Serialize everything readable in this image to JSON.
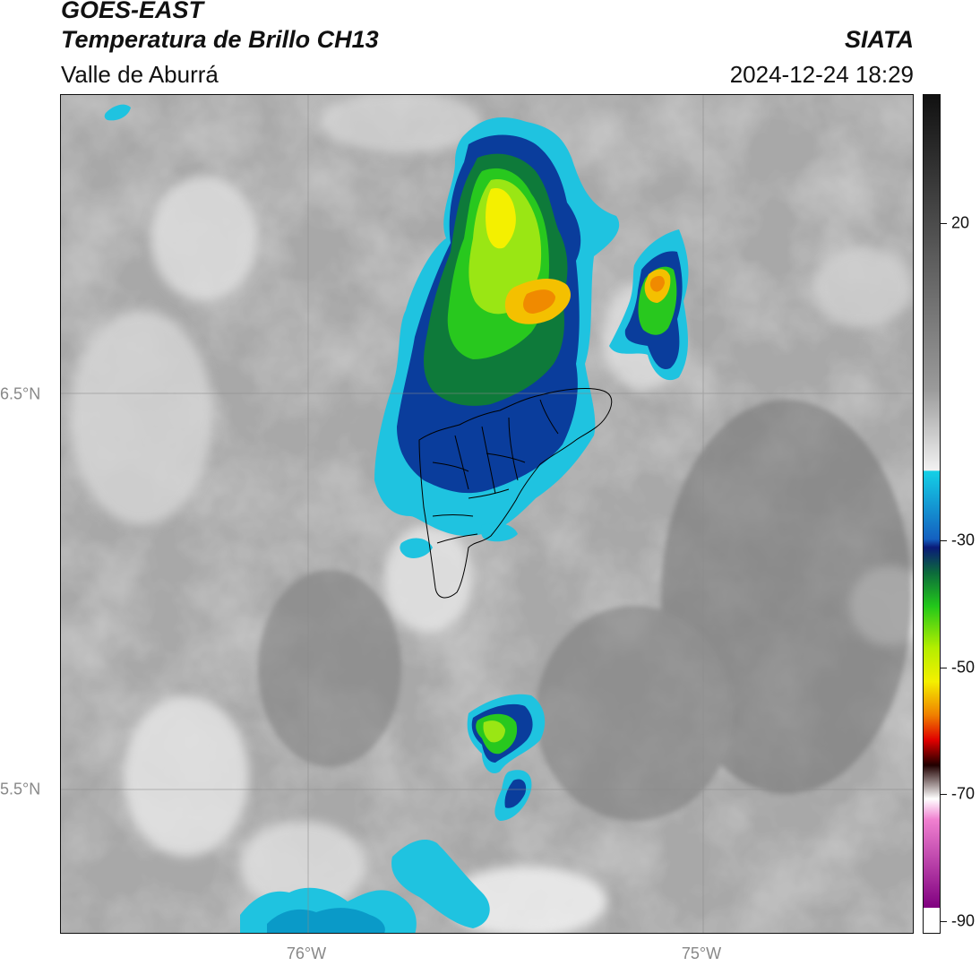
{
  "header": {
    "satellite": "GOES-EAST",
    "product": "Temperatura de Brillo CH13",
    "region": "Valle de Aburrá",
    "agency": "SIATA",
    "timestamp": "2024-12-24 18:29"
  },
  "axes": {
    "lat_labels": [
      "6.5°N",
      "5.5°N"
    ],
    "lon_labels": [
      "76°W",
      "75°W"
    ]
  },
  "colorbar": {
    "labels": [
      "20",
      "-30",
      "-50",
      "-70",
      "-90"
    ]
  }
}
